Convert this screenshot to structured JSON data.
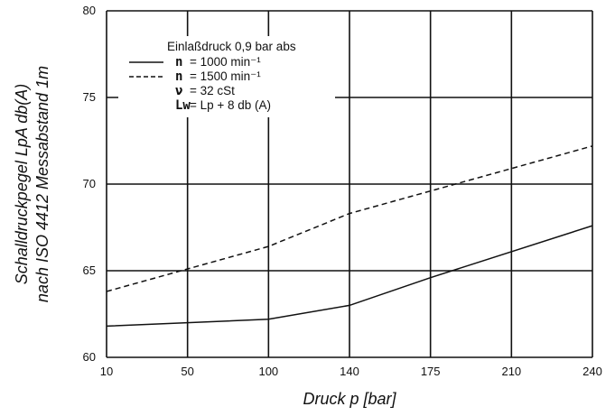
{
  "chart_data": {
    "type": "line",
    "title": "",
    "xlabel": "Druck p [bar]",
    "ylabel_lines": [
      "Schalldruckpegel LpA db(A)",
      "nach ISO 4412 Messabstand 1m"
    ],
    "x_categories": [
      "10",
      "50",
      "100",
      "140",
      "175",
      "210",
      "240"
    ],
    "x_scale": "categorical-equal-spacing",
    "ylim": [
      60,
      80
    ],
    "y_ticks": [
      "60",
      "65",
      "70",
      "75",
      "80"
    ],
    "grid": true,
    "legend_position": "top-left",
    "legend": {
      "header": "Einlaßdruck 0,9 bar abs",
      "entries": [
        {
          "symbol": "n",
          "text": "=  1000 min⁻¹",
          "line": "solid"
        },
        {
          "symbol": "n",
          "text": "=  1500 min⁻¹",
          "line": "dashed"
        },
        {
          "symbol": "ν",
          "text": "=  32 cSt",
          "line": "none"
        },
        {
          "symbol": "Lw",
          "text": "= Lp + 8 db (A)",
          "line": "none"
        }
      ]
    },
    "series": [
      {
        "line": "solid",
        "x": [
          "10",
          "100",
          "140",
          "175",
          "240"
        ],
        "values": [
          61.8,
          62.2,
          63.0,
          64.6,
          67.6
        ]
      },
      {
        "line": "dashed",
        "x": [
          "10",
          "100",
          "140",
          "240"
        ],
        "values": [
          63.8,
          66.4,
          68.3,
          72.2
        ]
      }
    ],
    "colors": {
      "line": "#111111",
      "grid": "#111111",
      "background": "#ffffff"
    }
  }
}
